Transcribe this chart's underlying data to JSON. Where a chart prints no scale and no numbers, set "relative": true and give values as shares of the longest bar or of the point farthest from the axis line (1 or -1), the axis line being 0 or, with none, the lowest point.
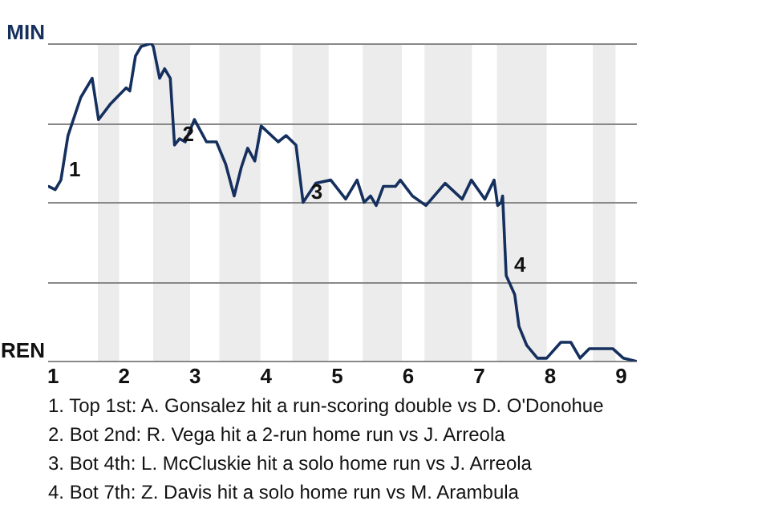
{
  "chart_data": {
    "type": "line",
    "relative": true,
    "x": [
      0.94,
      1.03,
      1.11,
      1.21,
      1.39,
      1.55,
      1.64,
      1.81,
      2.03,
      2.08,
      2.16,
      2.24,
      2.38,
      2.41,
      2.5,
      2.57,
      2.65,
      2.71,
      2.78,
      2.86,
      2.99,
      3.16,
      3.3,
      3.43,
      3.55,
      3.65,
      3.74,
      3.84,
      3.93,
      4.17,
      4.28,
      4.42,
      4.52,
      4.7,
      4.91,
      5.12,
      5.28,
      5.38,
      5.47,
      5.55,
      5.65,
      5.82,
      5.89,
      6.06,
      6.25,
      6.52,
      6.76,
      6.89,
      7.08,
      7.21,
      7.26,
      7.31,
      7.33,
      7.38,
      7.5,
      7.56,
      7.67,
      7.82,
      7.95,
      8.15,
      8.29,
      8.42,
      8.55,
      8.67,
      8.88,
      9.03,
      9.21
    ],
    "series": [
      {
        "color": "#15305e",
        "values": [
          0.55,
          0.54,
          0.57,
          0.71,
          0.83,
          0.89,
          0.76,
          0.81,
          0.86,
          0.85,
          0.96,
          0.99,
          1,
          0.99,
          0.89,
          0.92,
          0.89,
          0.68,
          0.7,
          0.69,
          0.76,
          0.69,
          0.69,
          0.62,
          0.52,
          0.61,
          0.67,
          0.63,
          0.74,
          0.69,
          0.71,
          0.68,
          0.5,
          0.56,
          0.57,
          0.51,
          0.57,
          0.5,
          0.52,
          0.49,
          0.55,
          0.55,
          0.57,
          0.52,
          0.49,
          0.56,
          0.51,
          0.57,
          0.51,
          0.57,
          0.49,
          0.5,
          0.52,
          0.27,
          0.21,
          0.11,
          0.05,
          0.01,
          0.01,
          0.06,
          0.06,
          0.01,
          0.04,
          0.04,
          0.04,
          0.01,
          0
        ]
      }
    ],
    "xlim": [
      0.93,
      9.22
    ],
    "xticks": [
      1,
      2,
      3,
      4,
      5,
      6,
      7,
      8,
      9
    ],
    "grid": "y",
    "legend": false,
    "marker": "none",
    "line_style": "solid",
    "bands": [
      {
        "axis": "x",
        "from": 1.63,
        "to": 1.93,
        "color": "#ececec"
      },
      {
        "axis": "x",
        "from": 2.41,
        "to": 2.93,
        "color": "#ececec"
      },
      {
        "axis": "x",
        "from": 3.34,
        "to": 3.92,
        "color": "#ececec"
      },
      {
        "axis": "x",
        "from": 4.37,
        "to": 4.88,
        "color": "#ececec"
      },
      {
        "axis": "x",
        "from": 5.36,
        "to": 5.91,
        "color": "#ececec"
      },
      {
        "axis": "x",
        "from": 6.23,
        "to": 6.9,
        "color": "#ececec"
      },
      {
        "axis": "x",
        "from": 7.25,
        "to": 7.95,
        "color": "#ececec"
      },
      {
        "axis": "x",
        "from": 8.6,
        "to": 8.92,
        "color": "#ececec"
      }
    ],
    "annotations": [
      "MIN",
      "REN",
      {
        "text": "1",
        "x": 1.11,
        "y": 0.57
      },
      {
        "text": "2",
        "x": 2.71,
        "y": 0.68
      },
      {
        "text": "3",
        "x": 4.52,
        "y": 0.5
      },
      {
        "text": "4",
        "x": 7.38,
        "y": 0.27
      },
      "1. Top 1st: A. Gonsalez hit a run-scoring double vs D. O'Donohue",
      "2. Bot 2nd: R. Vega hit a 2-run home run vs J. Arreola",
      "3. Bot 4th: L. McCluskie hit a solo home run vs J. Arreola",
      "4. Bot 7th: Z. Davis hit a solo home run vs M. Arambula"
    ]
  }
}
